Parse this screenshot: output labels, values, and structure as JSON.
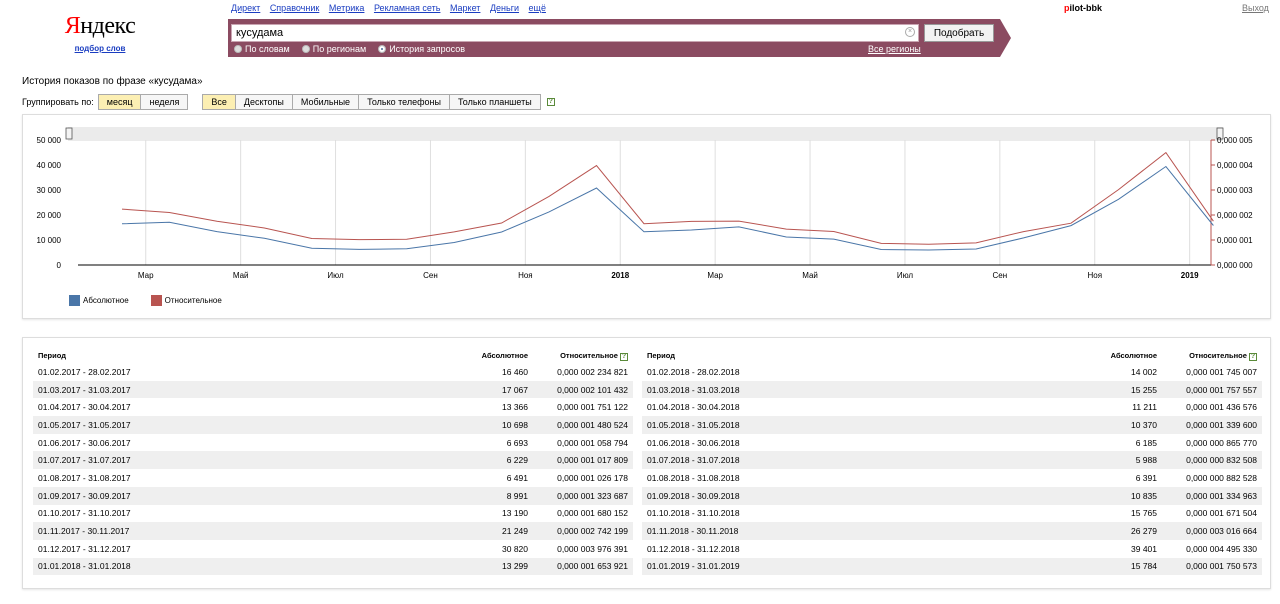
{
  "logo": {
    "text_first": "Я",
    "text_rest": "ндекс",
    "subtitle": "подбор слов"
  },
  "topnav": [
    "Директ",
    "Справочник",
    "Метрика",
    "Рекламная сеть",
    "Маркет",
    "Деньги",
    "ещё"
  ],
  "user": {
    "first": "p",
    "rest": "ilot-bbk",
    "logout": "Выход"
  },
  "search": {
    "value": "кусудама",
    "button": "Подобрать",
    "all_regions": "Все регионы",
    "modes": [
      {
        "label": "По словам",
        "checked": false
      },
      {
        "label": "По регионам",
        "checked": false
      },
      {
        "label": "История запросов",
        "checked": true
      }
    ]
  },
  "page_title": "История показов по фразе «кусудама»",
  "group": {
    "label": "Группировать по:",
    "periods": [
      {
        "label": "месяц",
        "active": true
      },
      {
        "label": "неделя",
        "active": false
      }
    ],
    "devices": [
      {
        "label": "Все",
        "active": true
      },
      {
        "label": "Десктопы",
        "active": false
      },
      {
        "label": "Мобильные",
        "active": false
      },
      {
        "label": "Только телефоны",
        "active": false
      },
      {
        "label": "Только планшеты",
        "active": false
      }
    ],
    "help": "?"
  },
  "chart_data": {
    "type": "line",
    "x": [
      "2017-02",
      "2017-03",
      "2017-04",
      "2017-05",
      "2017-06",
      "2017-07",
      "2017-08",
      "2017-09",
      "2017-10",
      "2017-11",
      "2017-12",
      "2018-01",
      "2018-02",
      "2018-03",
      "2018-04",
      "2018-05",
      "2018-06",
      "2018-07",
      "2018-08",
      "2018-09",
      "2018-10",
      "2018-11",
      "2018-12",
      "2019-01"
    ],
    "x_ticks": [
      {
        "label": "Мар",
        "bold": false
      },
      {
        "label": "Май",
        "bold": false
      },
      {
        "label": "Июл",
        "bold": false
      },
      {
        "label": "Сен",
        "bold": false
      },
      {
        "label": "Ноя",
        "bold": false
      },
      {
        "label": "2018",
        "bold": true
      },
      {
        "label": "Мар",
        "bold": false
      },
      {
        "label": "Май",
        "bold": false
      },
      {
        "label": "Июл",
        "bold": false
      },
      {
        "label": "Сен",
        "bold": false
      },
      {
        "label": "Ноя",
        "bold": false
      },
      {
        "label": "2019",
        "bold": true
      }
    ],
    "y_left_ticks": [
      "0",
      "10 000",
      "20 000",
      "30 000",
      "40 000",
      "50 000"
    ],
    "y_right_ticks": [
      "0,000 000",
      "0,000 001",
      "0,000 002",
      "0,000 003",
      "0,000 004",
      "0,000 005"
    ],
    "ylim_left": [
      0,
      50000
    ],
    "ylim_right": [
      0,
      5e-06
    ],
    "series": [
      {
        "name": "Абсолютное",
        "axis": "left",
        "color": "#4a76a8",
        "values": [
          16460,
          17067,
          13366,
          10698,
          6693,
          6229,
          6491,
          8991,
          13190,
          21249,
          30820,
          13299,
          14002,
          15255,
          11211,
          10370,
          6185,
          5988,
          6391,
          10835,
          15765,
          26279,
          39401,
          15784
        ]
      },
      {
        "name": "Относительное",
        "axis": "right",
        "color": "#b85450",
        "values": [
          2.234821e-06,
          2.101432e-06,
          1.751122e-06,
          1.48052e-06,
          1.058794e-06,
          1.017809e-06,
          1.026178e-06,
          1.323687e-06,
          1.680152e-06,
          2.742199e-06,
          3.976391e-06,
          1.653921e-06,
          1.745007e-06,
          1.757557e-06,
          1.436576e-06,
          1.3396e-06,
          8.6577e-07,
          8.32508e-07,
          8.82528e-07,
          1.334963e-06,
          1.671504e-06,
          3.016664e-06,
          4.49533e-06,
          1.750573e-06
        ]
      }
    ]
  },
  "table": {
    "headers": {
      "period": "Период",
      "absolute": "Абсолютное",
      "relative": "Относительное"
    },
    "left": [
      [
        "01.02.2017 - 28.02.2017",
        "16 460",
        "0,000 002 234 821"
      ],
      [
        "01.03.2017 - 31.03.2017",
        "17 067",
        "0,000 002 101 432"
      ],
      [
        "01.04.2017 - 30.04.2017",
        "13 366",
        "0,000 001 751 122"
      ],
      [
        "01.05.2017 - 31.05.2017",
        "10 698",
        "0,000 001 480 524"
      ],
      [
        "01.06.2017 - 30.06.2017",
        "6 693",
        "0,000 001 058 794"
      ],
      [
        "01.07.2017 - 31.07.2017",
        "6 229",
        "0,000 001 017 809"
      ],
      [
        "01.08.2017 - 31.08.2017",
        "6 491",
        "0,000 001 026 178"
      ],
      [
        "01.09.2017 - 30.09.2017",
        "8 991",
        "0,000 001 323 687"
      ],
      [
        "01.10.2017 - 31.10.2017",
        "13 190",
        "0,000 001 680 152"
      ],
      [
        "01.11.2017 - 30.11.2017",
        "21 249",
        "0,000 002 742 199"
      ],
      [
        "01.12.2017 - 31.12.2017",
        "30 820",
        "0,000 003 976 391"
      ],
      [
        "01.01.2018 - 31.01.2018",
        "13 299",
        "0,000 001 653 921"
      ]
    ],
    "right": [
      [
        "01.02.2018 - 28.02.2018",
        "14 002",
        "0,000 001 745 007"
      ],
      [
        "01.03.2018 - 31.03.2018",
        "15 255",
        "0,000 001 757 557"
      ],
      [
        "01.04.2018 - 30.04.2018",
        "11 211",
        "0,000 001 436 576"
      ],
      [
        "01.05.2018 - 31.05.2018",
        "10 370",
        "0,000 001 339 600"
      ],
      [
        "01.06.2018 - 30.06.2018",
        "6 185",
        "0,000 000 865 770"
      ],
      [
        "01.07.2018 - 31.07.2018",
        "5 988",
        "0,000 000 832 508"
      ],
      [
        "01.08.2018 - 31.08.2018",
        "6 391",
        "0,000 000 882 528"
      ],
      [
        "01.09.2018 - 30.09.2018",
        "10 835",
        "0,000 001 334 963"
      ],
      [
        "01.10.2018 - 31.10.2018",
        "15 765",
        "0,000 001 671 504"
      ],
      [
        "01.11.2018 - 30.11.2018",
        "26 279",
        "0,000 003 016 664"
      ],
      [
        "01.12.2018 - 31.12.2018",
        "39 401",
        "0,000 004 495 330"
      ],
      [
        "01.01.2019 - 31.01.2019",
        "15 784",
        "0,000 001 750 573"
      ]
    ]
  }
}
